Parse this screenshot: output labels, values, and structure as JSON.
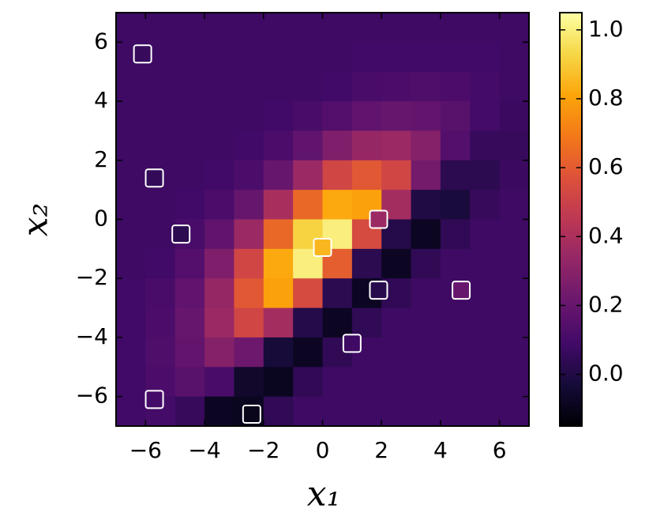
{
  "chart_data": {
    "type": "heatmap",
    "colormap": "inferno",
    "xlabel": "x₁",
    "ylabel": "x₂",
    "xlim": [
      -7,
      7
    ],
    "ylim": [
      -7,
      7
    ],
    "xticks": [
      {
        "value": -6,
        "label": "−6"
      },
      {
        "value": -4,
        "label": "−4"
      },
      {
        "value": -2,
        "label": "−2"
      },
      0,
      2,
      4,
      6
    ],
    "yticks": [
      {
        "value": -6,
        "label": "−6"
      },
      {
        "value": -4,
        "label": "−4"
      },
      {
        "value": -2,
        "label": "−2"
      },
      0,
      2,
      4,
      6
    ],
    "clim": [
      -0.15,
      1.05
    ],
    "cticks": [
      {
        "value": 0,
        "label": "0.0"
      },
      0.2,
      0.4,
      0.6,
      0.8,
      {
        "value": 1,
        "label": "1.0"
      }
    ],
    "x": [
      -6.5,
      -5.5,
      -4.5,
      -3.5,
      -2.5,
      -1.5,
      -0.5,
      0.5,
      1.5,
      2.5,
      3.5,
      4.5,
      5.5,
      6.5
    ],
    "y": [
      6.5,
      5.5,
      4.5,
      3.5,
      2.5,
      1.5,
      0.5,
      -0.5,
      -1.5,
      -2.5,
      -3.5,
      -4.5,
      -5.5,
      -6.5
    ],
    "z": [
      [
        0.08,
        0.08,
        0.08,
        0.08,
        0.08,
        0.08,
        0.08,
        0.08,
        0.08,
        0.08,
        0.08,
        0.08,
        0.08,
        0.08
      ],
      [
        0.08,
        0.08,
        0.08,
        0.08,
        0.08,
        0.08,
        0.08,
        0.08,
        0.09,
        0.09,
        0.09,
        0.09,
        0.09,
        0.08
      ],
      [
        0.08,
        0.08,
        0.08,
        0.08,
        0.08,
        0.08,
        0.08,
        0.09,
        0.11,
        0.12,
        0.13,
        0.12,
        0.1,
        0.08
      ],
      [
        0.08,
        0.08,
        0.08,
        0.08,
        0.08,
        0.09,
        0.11,
        0.14,
        0.18,
        0.2,
        0.19,
        0.16,
        0.1,
        0.07
      ],
      [
        0.08,
        0.08,
        0.08,
        0.08,
        0.09,
        0.12,
        0.18,
        0.27,
        0.34,
        0.35,
        0.29,
        0.14,
        0.06,
        0.06
      ],
      [
        0.08,
        0.08,
        0.08,
        0.09,
        0.12,
        0.2,
        0.35,
        0.52,
        0.59,
        0.52,
        0.24,
        0.03,
        0.03,
        0.07
      ],
      [
        0.08,
        0.08,
        0.09,
        0.12,
        0.2,
        0.39,
        0.64,
        0.82,
        0.8,
        0.38,
        0.0,
        -0.02,
        0.06,
        0.08
      ],
      [
        0.08,
        0.08,
        0.11,
        0.18,
        0.35,
        0.64,
        0.92,
        1.0,
        0.54,
        0.01,
        -0.08,
        0.04,
        0.08,
        0.08
      ],
      [
        0.08,
        0.09,
        0.14,
        0.27,
        0.52,
        0.82,
        1.0,
        0.61,
        0.03,
        -0.08,
        0.04,
        0.08,
        0.08,
        0.08
      ],
      [
        0.09,
        0.11,
        0.18,
        0.34,
        0.59,
        0.8,
        0.54,
        0.03,
        -0.08,
        0.04,
        0.08,
        0.08,
        0.08,
        0.08
      ],
      [
        0.09,
        0.12,
        0.2,
        0.35,
        0.52,
        0.38,
        0.01,
        -0.08,
        0.04,
        0.08,
        0.08,
        0.08,
        0.08,
        0.08
      ],
      [
        0.09,
        0.13,
        0.19,
        0.29,
        0.22,
        -0.03,
        -0.08,
        0.04,
        0.08,
        0.08,
        0.08,
        0.08,
        0.08,
        0.08
      ],
      [
        0.09,
        0.12,
        0.16,
        0.11,
        -0.06,
        -0.09,
        0.04,
        0.08,
        0.08,
        0.08,
        0.08,
        0.08,
        0.08,
        0.08
      ],
      [
        0.09,
        0.1,
        0.06,
        -0.08,
        -0.09,
        0.04,
        0.08,
        0.08,
        0.08,
        0.08,
        0.08,
        0.08,
        0.08,
        0.08
      ]
    ],
    "points": {
      "x": [
        -6.1,
        -5.7,
        -4.8,
        0,
        1.9,
        1.9,
        4.7,
        1,
        -5.7,
        -2.4
      ],
      "y": [
        5.6,
        1.4,
        -0.5,
        -0.95,
        0,
        -2.4,
        -2.4,
        -4.2,
        -6.1,
        -6.6
      ],
      "values": [
        0.06,
        0.05,
        0.03,
        0.85,
        0.35,
        0.02,
        0.2,
        0.08,
        0.1,
        -0.1
      ]
    }
  }
}
